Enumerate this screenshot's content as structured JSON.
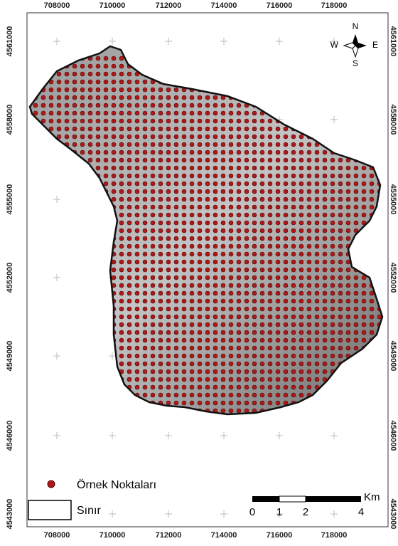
{
  "map": {
    "x_labels": [
      "708000",
      "710000",
      "712000",
      "714000",
      "716000",
      "718000"
    ],
    "y_labels": [
      "4561000",
      "4558000",
      "4555000",
      "4552000",
      "4549000",
      "4546000",
      "4543000"
    ],
    "compass": {
      "north": "N",
      "south": "S",
      "east": "E",
      "west": "W"
    },
    "legend": [
      {
        "label": "Örnek Noktaları"
      },
      {
        "label": "Sınır"
      }
    ],
    "scale_bar": {
      "unit": "Km",
      "labels": [
        "0",
        "1",
        "2",
        "4"
      ]
    }
  }
}
